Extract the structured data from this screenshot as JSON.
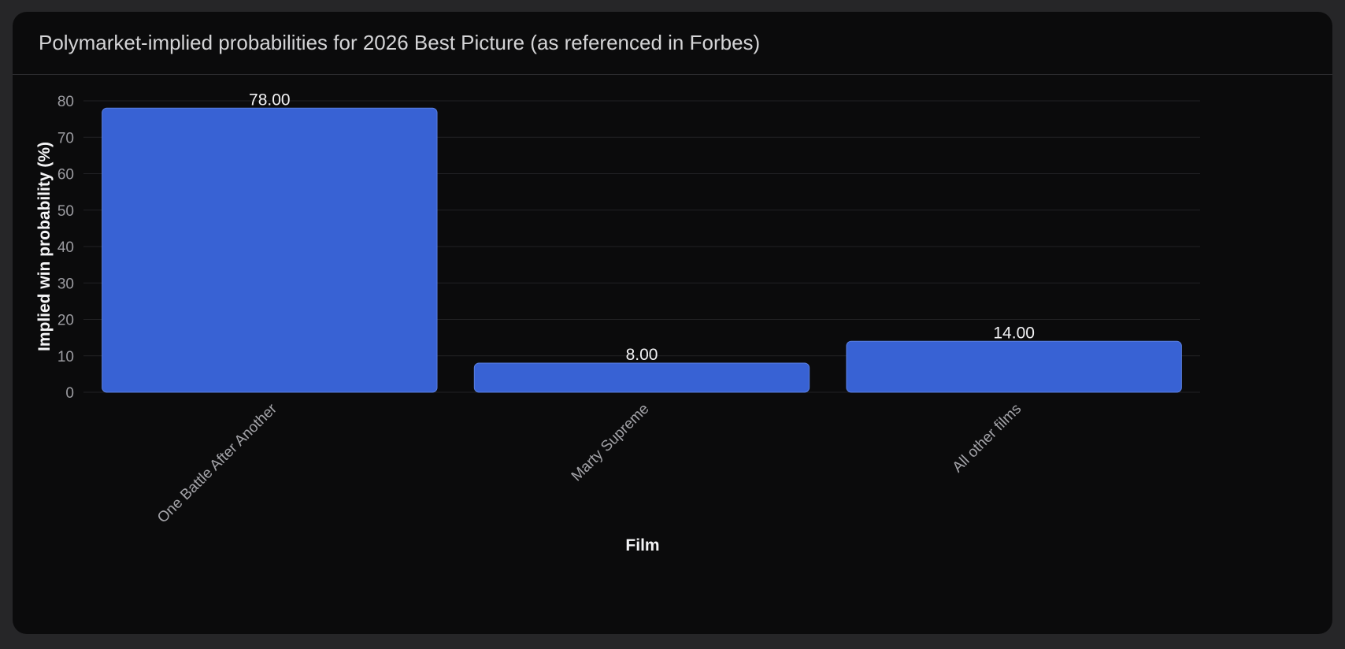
{
  "chart_data": {
    "type": "bar",
    "title": "Polymarket-implied probabilities for 2026 Best Picture (as referenced in Forbes)",
    "xlabel": "Film",
    "ylabel": "Implied win probability (%)",
    "categories": [
      "One Battle After Another",
      "Marty Supreme",
      "All other films"
    ],
    "values": [
      78,
      8,
      14
    ],
    "value_labels": [
      "78.00",
      "8.00",
      "14.00"
    ],
    "ylim": [
      0,
      80
    ],
    "yticks": [
      0,
      10,
      20,
      30,
      40,
      50,
      60,
      70,
      80
    ],
    "grid": true,
    "legend": "none",
    "bar_color": "#3862d4",
    "bar_border_color": "#5a7fe0"
  },
  "colors": {
    "page_background": "#262628",
    "panel_background": "#0b0b0c",
    "gridline": "#222225",
    "title_text": "#d4d4d6"
  }
}
